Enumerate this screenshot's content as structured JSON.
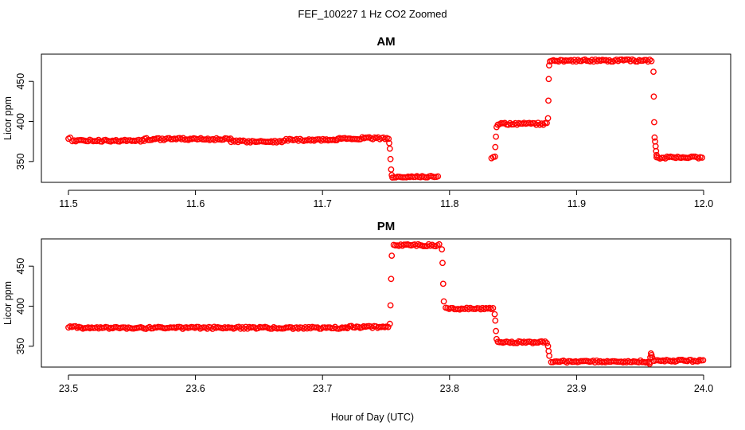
{
  "figure": {
    "title": "FEF_100227  1 Hz CO2 Zoomed",
    "xlabel": "Hour of Day (UTC)"
  },
  "chart_data": [
    {
      "type": "scatter",
      "title": "AM",
      "xlabel": "",
      "ylabel": "Licor ppm",
      "xlim": [
        11.5,
        12.0
      ],
      "ylim": [
        324,
        484
      ],
      "xticks": [
        "11.5",
        "11.6",
        "11.7",
        "11.8",
        "11.9",
        "12.0"
      ],
      "yticks": [
        "350",
        "400",
        "450"
      ],
      "grid": false,
      "marker": "open-circle",
      "color": "#ff0000",
      "segments": [
        {
          "x_start": 11.5,
          "x_end": 11.502,
          "y": 379
        },
        {
          "x_start": 11.503,
          "x_end": 11.56,
          "y": 376
        },
        {
          "x_start": 11.56,
          "x_end": 11.628,
          "y": 378
        },
        {
          "x_start": 11.628,
          "x_end": 11.67,
          "y": 375
        },
        {
          "x_start": 11.67,
          "x_end": 11.712,
          "y": 377
        },
        {
          "x_start": 11.712,
          "x_end": 11.752,
          "y": 379
        },
        {
          "x_start": 11.755,
          "x_end": 11.792,
          "y": 331
        },
        {
          "x_start": 11.833,
          "x_end": 11.836,
          "y": 355
        },
        {
          "x_start": 11.838,
          "x_end": 11.877,
          "y": 397
        },
        {
          "x_start": 11.879,
          "x_end": 11.96,
          "y": 476
        },
        {
          "x_start": 11.963,
          "x_end": 12.0,
          "y": 355
        }
      ],
      "transitions": [
        {
          "x": 11.7525,
          "y": 373
        },
        {
          "x": 11.753,
          "y": 366
        },
        {
          "x": 11.7535,
          "y": 353
        },
        {
          "x": 11.754,
          "y": 340
        },
        {
          "x": 11.7545,
          "y": 333
        },
        {
          "x": 11.836,
          "y": 368
        },
        {
          "x": 11.8365,
          "y": 381
        },
        {
          "x": 11.837,
          "y": 393
        },
        {
          "x": 11.8775,
          "y": 404
        },
        {
          "x": 11.8778,
          "y": 426
        },
        {
          "x": 11.8781,
          "y": 453
        },
        {
          "x": 11.8784,
          "y": 470
        },
        {
          "x": 11.9605,
          "y": 462
        },
        {
          "x": 11.9608,
          "y": 431
        },
        {
          "x": 11.9611,
          "y": 399
        },
        {
          "x": 11.9614,
          "y": 380
        },
        {
          "x": 11.9618,
          "y": 375
        },
        {
          "x": 11.9622,
          "y": 369
        },
        {
          "x": 11.9626,
          "y": 363
        },
        {
          "x": 11.963,
          "y": 358
        }
      ]
    },
    {
      "type": "scatter",
      "title": "PM",
      "xlabel": "",
      "ylabel": "Licor ppm",
      "xlim": [
        23.5,
        24.0
      ],
      "ylim": [
        324,
        484
      ],
      "xticks": [
        "23.5",
        "23.6",
        "23.7",
        "23.8",
        "23.9",
        "24.0"
      ],
      "yticks": [
        "350",
        "400",
        "450"
      ],
      "grid": false,
      "marker": "open-circle",
      "color": "#ff0000",
      "segments": [
        {
          "x_start": 23.5,
          "x_end": 23.51,
          "y": 374
        },
        {
          "x_start": 23.51,
          "x_end": 23.72,
          "y": 373
        },
        {
          "x_start": 23.72,
          "x_end": 23.752,
          "y": 374
        },
        {
          "x_start": 23.756,
          "x_end": 23.793,
          "y": 476
        },
        {
          "x_start": 23.797,
          "x_end": 23.835,
          "y": 397
        },
        {
          "x_start": 23.838,
          "x_end": 23.877,
          "y": 355
        },
        {
          "x_start": 23.88,
          "x_end": 23.958,
          "y": 331
        },
        {
          "x_start": 23.961,
          "x_end": 24.0,
          "y": 332
        }
      ],
      "transitions": [
        {
          "x": 23.753,
          "y": 378
        },
        {
          "x": 23.7535,
          "y": 401
        },
        {
          "x": 23.754,
          "y": 434
        },
        {
          "x": 23.7545,
          "y": 463
        },
        {
          "x": 23.794,
          "y": 471
        },
        {
          "x": 23.7945,
          "y": 454
        },
        {
          "x": 23.795,
          "y": 428
        },
        {
          "x": 23.7955,
          "y": 406
        },
        {
          "x": 23.8355,
          "y": 390
        },
        {
          "x": 23.836,
          "y": 382
        },
        {
          "x": 23.8365,
          "y": 369
        },
        {
          "x": 23.837,
          "y": 359
        },
        {
          "x": 23.8775,
          "y": 350
        },
        {
          "x": 23.878,
          "y": 344
        },
        {
          "x": 23.8785,
          "y": 338
        },
        {
          "x": 23.9575,
          "y": 328
        },
        {
          "x": 23.958,
          "y": 336
        },
        {
          "x": 23.9585,
          "y": 341
        },
        {
          "x": 23.959,
          "y": 339
        },
        {
          "x": 23.9595,
          "y": 336
        }
      ]
    }
  ]
}
